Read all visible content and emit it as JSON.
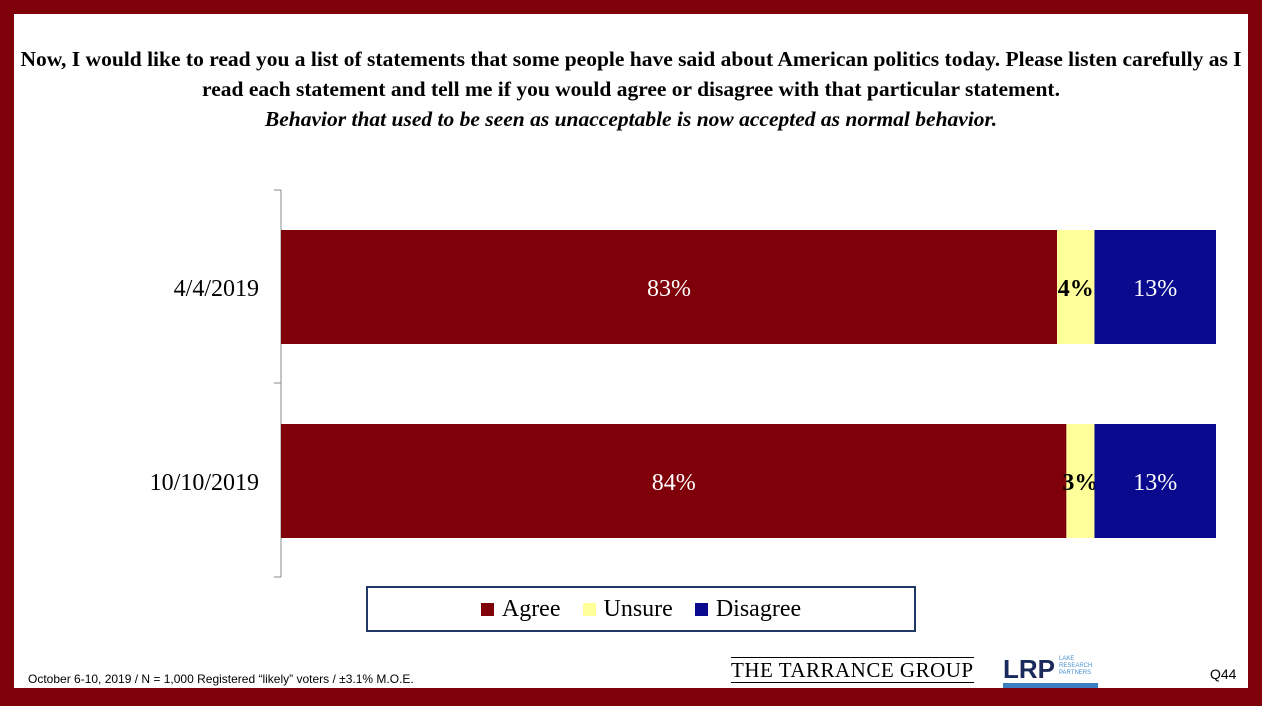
{
  "chart_data": {
    "type": "stacked-bar-horizontal",
    "title": "Now, I would like to read you a list of statements that some people have said about American politics today.  Please listen carefully as I read each statement and tell me if you would agree or disagree with that particular statement.",
    "subtitle": "Behavior that used to be seen as unacceptable is now accepted as normal behavior.",
    "categories": [
      "4/4/2019",
      "10/10/2019"
    ],
    "series": [
      {
        "name": "Agree",
        "color": "#7f0009",
        "label_color": "#ffffff",
        "values": [
          83,
          84
        ],
        "labels": [
          "83%",
          "84%"
        ]
      },
      {
        "name": "Unsure",
        "color": "#ffff99",
        "label_color": "#000000",
        "values": [
          4,
          3
        ],
        "labels": [
          "4%",
          "3%"
        ]
      },
      {
        "name": "Disagree",
        "color": "#0a0a8e",
        "label_color": "#ffffff",
        "values": [
          13,
          13
        ],
        "labels": [
          "13%",
          "13%"
        ]
      }
    ],
    "xlim": [
      0,
      100
    ],
    "legend": "bottom"
  },
  "footer": {
    "note": "October 6-10, 2019 / N = 1,000 Registered “likely” voters / ±3.1% M.O.E.",
    "org1": "THE TARRANCE GROUP",
    "org2": "LRP",
    "org2_sub": "LAKE RESEARCH PARTNERS",
    "question": "Q44"
  }
}
